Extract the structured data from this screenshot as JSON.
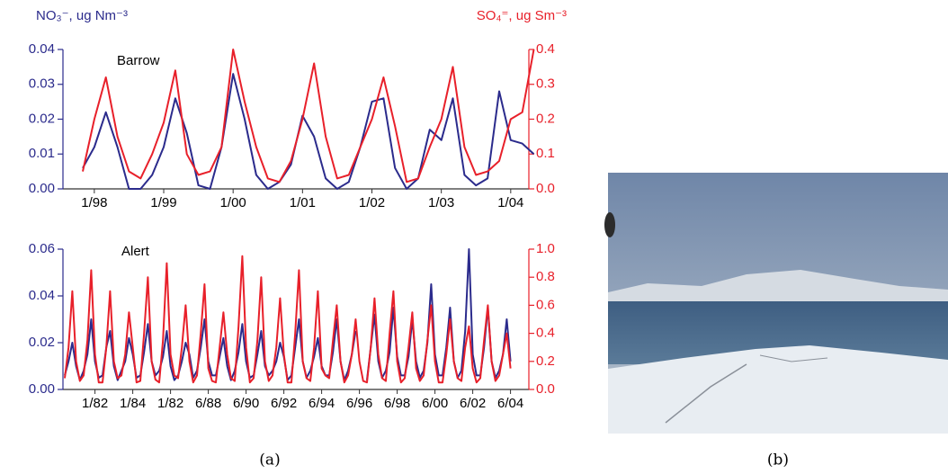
{
  "chart_data": [
    {
      "type": "line",
      "title": "Barrow",
      "ylabel": "NO₃⁻, ug Nm⁻³",
      "y2label": "SO₄⁼, ug Sm⁻³",
      "categories": [
        null,
        "1/98",
        null,
        null,
        null,
        null,
        null,
        "1/99",
        null,
        null,
        null,
        null,
        null,
        "1/00",
        null,
        null,
        null,
        null,
        null,
        "1/01",
        null,
        null,
        null,
        null,
        null,
        "1/02",
        null,
        null,
        null,
        null,
        null,
        "1/03",
        null,
        null,
        null,
        null,
        null,
        "1/04",
        null,
        null
      ],
      "series": [
        {
          "name": "NO₃⁻",
          "color": "#2b2b8c",
          "axis": "y",
          "values": [
            0.006,
            0.012,
            0.022,
            0.012,
            0.0,
            0.0,
            0.004,
            0.012,
            0.026,
            0.016,
            0.001,
            0.0,
            0.012,
            0.033,
            0.02,
            0.004,
            0.0,
            0.002,
            0.007,
            0.021,
            0.015,
            0.003,
            0.0,
            0.002,
            0.012,
            0.025,
            0.026,
            0.006,
            0.0,
            0.003,
            0.017,
            0.014,
            0.026,
            0.004,
            0.001,
            0.003,
            0.028,
            0.014,
            0.013,
            0.01
          ]
        },
        {
          "name": "SO₄⁼",
          "color": "#e8202a",
          "axis": "y2",
          "values": [
            0.05,
            0.2,
            0.32,
            0.15,
            0.05,
            0.03,
            0.1,
            0.19,
            0.34,
            0.1,
            0.04,
            0.05,
            0.12,
            0.4,
            0.25,
            0.12,
            0.03,
            0.02,
            0.08,
            0.2,
            0.36,
            0.15,
            0.03,
            0.04,
            0.12,
            0.2,
            0.32,
            0.18,
            0.02,
            0.03,
            0.12,
            0.2,
            0.35,
            0.12,
            0.04,
            0.05,
            0.08,
            0.2,
            0.22,
            0.4
          ]
        }
      ],
      "ylim": [
        0,
        0.04
      ],
      "yticks": [
        {
          "value": 0,
          "label": "0.00"
        },
        {
          "value": 0.01,
          "label": "0.01"
        },
        {
          "value": 0.02,
          "label": "0.02"
        },
        {
          "value": 0.03,
          "label": "0.03"
        },
        {
          "value": 0.04,
          "label": "0.04"
        }
      ],
      "y2lim": [
        0,
        0.4
      ],
      "y2ticks": [
        {
          "value": 0,
          "label": "0.0"
        },
        {
          "value": 0.1,
          "label": "0.1"
        },
        {
          "value": 0.2,
          "label": "0.2"
        },
        {
          "value": 0.3,
          "label": "0.3"
        },
        {
          "value": 0.4,
          "label": "0.4"
        }
      ]
    },
    {
      "type": "line",
      "title": "Alert",
      "categories": [
        null,
        null,
        null,
        null,
        null,
        null,
        null,
        null,
        "1/82",
        null,
        null,
        null,
        null,
        null,
        null,
        null,
        null,
        null,
        "1/84",
        null,
        null,
        null,
        null,
        null,
        null,
        null,
        null,
        null,
        "1/82",
        null,
        null,
        null,
        null,
        null,
        null,
        null,
        null,
        null,
        "6/88",
        null,
        null,
        null,
        null,
        null,
        null,
        null,
        null,
        null,
        "6/90",
        null,
        null,
        null,
        null,
        null,
        null,
        null,
        null,
        null,
        "6/92",
        null,
        null,
        null,
        null,
        null,
        null,
        null,
        null,
        null,
        "6/94",
        null,
        null,
        null,
        null,
        null,
        null,
        null,
        null,
        null,
        "6/96",
        null,
        null,
        null,
        null,
        null,
        null,
        null,
        null,
        null,
        "6/98",
        null,
        null,
        null,
        null,
        null,
        null,
        null,
        null,
        null,
        "6/00",
        null,
        null,
        null,
        null,
        null,
        null,
        null,
        null,
        null,
        "6/02",
        null,
        null,
        null,
        null,
        null,
        null,
        null,
        null,
        null,
        "6/04"
      ],
      "series": [
        {
          "name": "NO₃⁻",
          "color": "#2b2b8c",
          "axis": "y",
          "values": [
            0.006,
            0.012,
            0.02,
            0.01,
            0.004,
            0.008,
            0.015,
            0.03,
            0.012,
            0.005,
            0.006,
            0.018,
            0.025,
            0.01,
            0.004,
            0.008,
            0.012,
            0.022,
            0.015,
            0.005,
            0.006,
            0.016,
            0.028,
            0.012,
            0.006,
            0.008,
            0.014,
            0.025,
            0.01,
            0.004,
            0.006,
            0.012,
            0.02,
            0.015,
            0.005,
            0.008,
            0.018,
            0.03,
            0.012,
            0.006,
            0.006,
            0.014,
            0.022,
            0.01,
            0.004,
            0.008,
            0.016,
            0.028,
            0.012,
            0.005,
            0.006,
            0.015,
            0.025,
            0.01,
            0.006,
            0.008,
            0.012,
            0.02,
            0.014,
            0.004,
            0.006,
            0.018,
            0.03,
            0.012,
            0.005,
            0.008,
            0.014,
            0.022,
            0.01,
            0.006,
            0.006,
            0.016,
            0.03,
            0.012,
            0.004,
            0.008,
            0.015,
            0.025,
            null,
            null,
            0.004,
            0.018,
            0.032,
            0.012,
            0.005,
            0.008,
            0.016,
            0.035,
            0.014,
            0.006,
            0.006,
            0.014,
            0.03,
            0.012,
            0.005,
            0.008,
            0.02,
            0.045,
            0.015,
            0.006,
            0.006,
            0.018,
            0.035,
            0.012,
            0.005,
            0.008,
            0.025,
            0.06,
            0.015,
            0.006,
            0.006,
            0.018,
            0.035,
            0.012,
            0.005,
            0.008,
            0.015,
            0.03,
            0.012
          ]
        },
        {
          "name": "SO₄⁼",
          "color": "#e8202a",
          "axis": "y2",
          "values": [
            0.08,
            0.3,
            0.7,
            0.2,
            0.06,
            0.1,
            0.35,
            0.85,
            0.25,
            0.05,
            0.05,
            0.3,
            0.7,
            0.2,
            0.08,
            0.1,
            0.25,
            0.55,
            0.3,
            0.05,
            0.06,
            0.4,
            0.8,
            0.2,
            0.07,
            0.05,
            0.35,
            0.9,
            0.25,
            0.1,
            0.08,
            0.3,
            0.6,
            0.2,
            0.05,
            0.1,
            0.4,
            0.75,
            0.15,
            0.06,
            0.05,
            0.3,
            0.55,
            0.25,
            0.08,
            0.06,
            0.45,
            0.95,
            0.3,
            0.05,
            0.08,
            0.35,
            0.8,
            0.2,
            0.06,
            0.1,
            0.3,
            0.65,
            0.25,
            0.05,
            0.05,
            0.4,
            0.85,
            0.2,
            0.08,
            0.06,
            0.3,
            0.7,
            0.15,
            0.1,
            0.08,
            0.35,
            0.6,
            0.2,
            0.05,
            0.1,
            0.25,
            0.5,
            0.2,
            0.06,
            0.05,
            0.3,
            0.65,
            0.25,
            0.08,
            0.06,
            0.4,
            0.7,
            0.2,
            0.05,
            0.08,
            0.3,
            0.55,
            0.15,
            0.06,
            0.1,
            0.35,
            0.6,
            0.2,
            0.05,
            0.05,
            0.25,
            0.5,
            0.2,
            0.08,
            0.06,
            0.3,
            0.45,
            0.15,
            0.05,
            0.08,
            0.35,
            0.6,
            0.2,
            0.06,
            0.1,
            0.25,
            0.4,
            0.15
          ]
        }
      ],
      "ylim": [
        0,
        0.06
      ],
      "yticks": [
        {
          "value": 0,
          "label": "0.00"
        },
        {
          "value": 0.02,
          "label": "0.02"
        },
        {
          "value": 0.04,
          "label": "0.04"
        },
        {
          "value": 0.06,
          "label": "0.06"
        }
      ],
      "y2lim": [
        0,
        1.0
      ],
      "y2ticks": [
        {
          "value": 0,
          "label": "0.0"
        },
        {
          "value": 0.2,
          "label": "0.2"
        },
        {
          "value": 0.4,
          "label": "0.4"
        },
        {
          "value": 0.6,
          "label": "0.6"
        },
        {
          "value": 0.8,
          "label": "0.8"
        },
        {
          "value": 1.0,
          "label": "1.0"
        }
      ]
    }
  ],
  "captions": [
    "(a)",
    "(b)"
  ]
}
